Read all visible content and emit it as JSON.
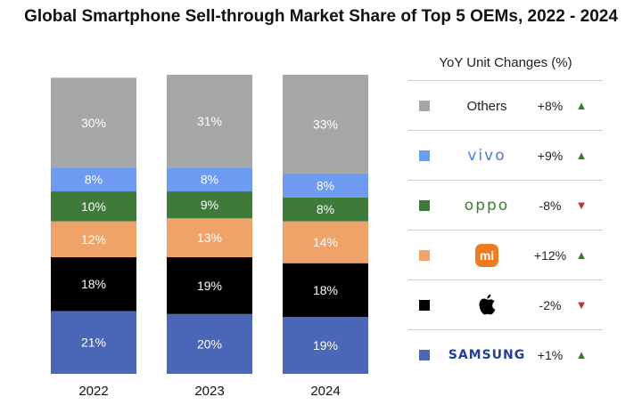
{
  "chart_data": {
    "type": "bar",
    "stacked": true,
    "title": "Global Smartphone Sell-through Market Share of Top 5 OEMs, 2022 - 2024",
    "categories": [
      "2022",
      "2023",
      "2024"
    ],
    "series": [
      {
        "name": "Samsung",
        "color": "#4a67b7",
        "values": [
          21,
          20,
          19
        ]
      },
      {
        "name": "Apple",
        "color": "#000000",
        "values": [
          18,
          19,
          18
        ]
      },
      {
        "name": "Xiaomi",
        "color": "#f0a368",
        "values": [
          12,
          13,
          14
        ]
      },
      {
        "name": "OPPO",
        "color": "#3f7a3a",
        "values": [
          10,
          9,
          8
        ]
      },
      {
        "name": "vivo",
        "color": "#6f9bf2",
        "values": [
          8,
          8,
          8
        ]
      },
      {
        "name": "Others",
        "color": "#a7a7a7",
        "values": [
          30,
          31,
          33
        ]
      }
    ],
    "ylim": [
      0,
      100
    ],
    "legend": {
      "title": "YoY Unit Changes (%)",
      "placement": "right",
      "items": [
        {
          "key": "others",
          "label": "Others",
          "change": "+8%",
          "direction": "up",
          "color": "#a7a7a7",
          "brand_style": "text"
        },
        {
          "key": "vivo",
          "label": "vivo",
          "change": "+9%",
          "direction": "up",
          "color": "#6f9bf2",
          "brand_style": "vivo"
        },
        {
          "key": "oppo",
          "label": "oppo",
          "change": "-8%",
          "direction": "down",
          "color": "#3f7a3a",
          "brand_style": "oppo"
        },
        {
          "key": "xiaomi",
          "label": "mi",
          "change": "+12%",
          "direction": "up",
          "color": "#f0a368",
          "brand_style": "mi-logo"
        },
        {
          "key": "apple",
          "label": "",
          "change": "-2%",
          "direction": "down",
          "color": "#000000",
          "brand_style": "apple-logo"
        },
        {
          "key": "samsung",
          "label": "SAMSUNG",
          "change": "+1%",
          "direction": "up",
          "color": "#4a67b7",
          "brand_style": "samsung"
        }
      ]
    },
    "arrow_colors": {
      "up": "#3f7a3a",
      "down": "#b23a2a"
    }
  }
}
